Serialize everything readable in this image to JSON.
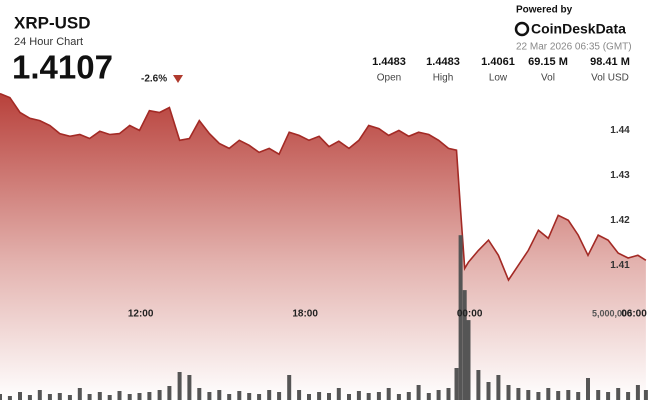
{
  "header": {
    "title": "XRP-USD",
    "subtitle": "24 Hour Chart",
    "price": "1.4107",
    "change": "-2.6%",
    "powered_by": "Powered by",
    "brand": "CoinDeskData",
    "timestamp": "22 Mar 2026 06:35 (GMT)",
    "stats": [
      {
        "value": "1.4483",
        "label": "Open"
      },
      {
        "value": "1.4483",
        "label": "High"
      },
      {
        "value": "1.4061",
        "label": "Low"
      },
      {
        "value": "69.15 M",
        "label": "Vol"
      },
      {
        "value": "98.41 M",
        "label": "Vol USD"
      }
    ]
  },
  "chart_data": {
    "type": "line",
    "x": [
      6.87,
      7.23,
      7.6,
      7.96,
      8.32,
      8.69,
      9.05,
      9.42,
      9.78,
      10.14,
      10.51,
      10.87,
      11.23,
      11.6,
      11.96,
      12.32,
      12.69,
      13.05,
      13.42,
      13.78,
      14.14,
      14.51,
      14.87,
      15.23,
      15.6,
      15.96,
      16.32,
      16.69,
      17.05,
      17.42,
      17.78,
      18.14,
      18.51,
      18.87,
      19.23,
      19.6,
      19.96,
      20.32,
      20.69,
      21.05,
      21.42,
      21.78,
      22.14,
      22.51,
      22.87,
      23.23,
      23.52,
      23.67,
      23.82,
      23.96,
      24.32,
      24.69,
      25.05,
      25.42,
      25.78,
      26.14,
      26.51,
      26.87,
      27.23,
      27.6,
      27.96,
      28.32,
      28.69,
      29.05,
      29.42,
      29.78,
      30.14,
      30.43
    ],
    "series": [
      {
        "color": "#a32a25",
        "values": [
          1.4482,
          1.4473,
          1.444,
          1.4427,
          1.4422,
          1.4411,
          1.4393,
          1.4387,
          1.4391,
          1.4382,
          1.4398,
          1.4391,
          1.4393,
          1.4411,
          1.44,
          1.4444,
          1.444,
          1.4451,
          1.4378,
          1.4382,
          1.4422,
          1.4393,
          1.4371,
          1.436,
          1.4378,
          1.4367,
          1.4351,
          1.436,
          1.4347,
          1.4396,
          1.4389,
          1.4378,
          1.4387,
          1.4364,
          1.4376,
          1.436,
          1.4378,
          1.4411,
          1.4404,
          1.4389,
          1.44,
          1.4387,
          1.4396,
          1.4391,
          1.4378,
          1.436,
          1.4356,
          1.4222,
          1.4093,
          1.4107,
          1.4133,
          1.4156,
          1.4122,
          1.4067,
          1.41,
          1.4133,
          1.4178,
          1.416,
          1.4211,
          1.42,
          1.4167,
          1.4122,
          1.4167,
          1.4156,
          1.4127,
          1.4116,
          1.4122,
          1.4111
        ]
      },
      {
        "type": "bar",
        "axis": "y2",
        "color": "#555555",
        "values": [
          348000,
          232000,
          464000,
          290000,
          580000,
          348000,
          406000,
          290000,
          696000,
          348000,
          464000,
          290000,
          522000,
          348000,
          406000,
          464000,
          580000,
          812000,
          1624000,
          1450000,
          696000,
          464000,
          580000,
          348000,
          522000,
          406000,
          348000,
          580000,
          464000,
          1450000,
          580000,
          348000,
          464000,
          406000,
          696000,
          348000,
          522000,
          406000,
          464000,
          696000,
          348000,
          464000,
          870000,
          406000,
          580000,
          696000,
          1856000,
          9570000,
          6380000,
          4640000,
          1740000,
          1044000,
          1450000,
          870000,
          696000,
          580000,
          464000,
          696000,
          522000,
          580000,
          464000,
          1276000,
          580000,
          464000,
          696000,
          464000,
          870000,
          580000
        ]
      }
    ],
    "xlim": [
      6.87,
      30.58
    ],
    "xticks": [
      {
        "value": 12,
        "label": "12:00"
      },
      {
        "value": 18,
        "label": "18:00"
      },
      {
        "value": 24,
        "label": "00:00"
      },
      {
        "value": 30,
        "label": "06:00"
      }
    ],
    "ylim": [
      1.38,
      1.449
    ],
    "yticks": [
      1.41,
      1.42,
      1.43,
      1.44
    ],
    "y2lim": [
      0,
      18000000
    ],
    "y2ticks": [
      {
        "value": 5000000,
        "label": "5,000,000"
      }
    ],
    "grid": true
  }
}
